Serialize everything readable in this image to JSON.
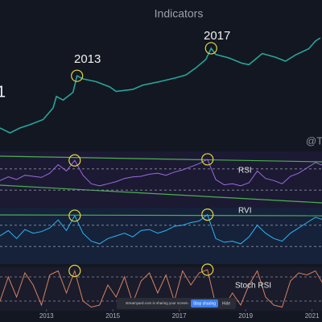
{
  "title": "Indicators",
  "watermark": "@Te",
  "screen_share": {
    "message": "streamyard.com is sharing your screen.",
    "stop_button": "Stop sharing",
    "hide_button": "Hide"
  },
  "chart_data": [
    {
      "type": "line",
      "log_scale": true,
      "color": "#26a69a",
      "annotations": [
        {
          "text": "1"
        },
        {
          "text": "2013"
        },
        {
          "text": "2017"
        }
      ],
      "xlim": [
        2011.6,
        2021.3
      ],
      "ylim": [
        2,
        100000
      ],
      "x": [
        2011.6,
        2011.9,
        2012.2,
        2012.5,
        2012.9,
        2013.2,
        2013.3,
        2013.5,
        2013.8,
        2013.92,
        2014.1,
        2014.5,
        2014.9,
        2015.1,
        2015.6,
        2015.9,
        2016.4,
        2016.9,
        2017.2,
        2017.5,
        2017.8,
        2017.96,
        2018.1,
        2018.5,
        2018.9,
        2019.1,
        2019.5,
        2019.9,
        2020.2,
        2020.5,
        2020.9,
        2021.1,
        2021.25
      ],
      "values": [
        5,
        3,
        5,
        7,
        12,
        40,
        130,
        90,
        200,
        1100,
        800,
        600,
        350,
        220,
        270,
        420,
        600,
        900,
        1200,
        2500,
        6000,
        19000,
        10000,
        7000,
        4000,
        3500,
        11000,
        7500,
        5000,
        9500,
        18000,
        40000,
        55000
      ]
    },
    {
      "type": "line",
      "label": "RSI",
      "color": "#9c6ade",
      "hlines": [
        70,
        30
      ],
      "xlim": [
        2011.6,
        2021.3
      ],
      "ylim": [
        0,
        100
      ],
      "x": [
        2011.6,
        2011.85,
        2012.1,
        2012.35,
        2012.6,
        2012.85,
        2013.1,
        2013.35,
        2013.6,
        2013.85,
        2014.1,
        2014.35,
        2014.6,
        2014.85,
        2015.1,
        2015.35,
        2015.6,
        2015.85,
        2016.1,
        2016.35,
        2016.6,
        2016.85,
        2017.1,
        2017.35,
        2017.6,
        2017.85,
        2018.1,
        2018.35,
        2018.6,
        2018.85,
        2019.1,
        2019.35,
        2019.6,
        2019.85,
        2020.1,
        2020.35,
        2020.6,
        2020.85,
        2021.1,
        2021.35
      ],
      "values": [
        48,
        55,
        50,
        58,
        56,
        54,
        62,
        78,
        66,
        86,
        58,
        42,
        38,
        42,
        46,
        52,
        55,
        56,
        60,
        62,
        58,
        64,
        68,
        74,
        80,
        88,
        50,
        40,
        42,
        38,
        44,
        66,
        52,
        48,
        42,
        56,
        62,
        72,
        82,
        76
      ]
    },
    {
      "type": "line",
      "label": "RVI",
      "color": "#29b6f6",
      "hlines": [
        70,
        30
      ],
      "xlim": [
        2011.6,
        2021.3
      ],
      "ylim": [
        0,
        100
      ],
      "x": [
        2011.6,
        2011.85,
        2012.1,
        2012.35,
        2012.6,
        2012.85,
        2013.1,
        2013.35,
        2013.6,
        2013.85,
        2014.1,
        2014.35,
        2014.6,
        2014.85,
        2015.1,
        2015.35,
        2015.6,
        2015.85,
        2016.1,
        2016.35,
        2016.6,
        2016.85,
        2017.1,
        2017.35,
        2017.6,
        2017.85,
        2018.1,
        2018.35,
        2018.6,
        2018.85,
        2019.1,
        2019.35,
        2019.6,
        2019.85,
        2020.1,
        2020.35,
        2020.6,
        2020.85,
        2021.1,
        2021.35
      ],
      "values": [
        50,
        60,
        45,
        62,
        55,
        58,
        65,
        80,
        60,
        88,
        55,
        40,
        35,
        45,
        50,
        55,
        48,
        60,
        62,
        55,
        60,
        68,
        70,
        75,
        78,
        90,
        45,
        38,
        40,
        35,
        48,
        70,
        55,
        45,
        40,
        55,
        65,
        75,
        85,
        80
      ]
    },
    {
      "type": "line",
      "label": "Stoch RSI",
      "color": "#d9805f",
      "hlines": [
        80,
        20
      ],
      "xlim": [
        2011.6,
        2021.3
      ],
      "ylim": [
        0,
        100
      ],
      "xticks": [
        2013,
        2015,
        2017,
        2019,
        2021
      ],
      "x": [
        2011.6,
        2011.85,
        2012.1,
        2012.35,
        2012.6,
        2012.85,
        2013.1,
        2013.35,
        2013.6,
        2013.85,
        2014.1,
        2014.35,
        2014.6,
        2014.85,
        2015.1,
        2015.35,
        2015.6,
        2015.85,
        2016.1,
        2016.35,
        2016.6,
        2016.85,
        2017.1,
        2017.35,
        2017.6,
        2017.85,
        2018.1,
        2018.35,
        2018.6,
        2018.85,
        2019.1,
        2019.35,
        2019.6,
        2019.85,
        2020.1,
        2020.35,
        2020.6,
        2020.85,
        2021.1,
        2021.35
      ],
      "values": [
        20,
        80,
        30,
        90,
        60,
        10,
        85,
        95,
        40,
        95,
        20,
        5,
        10,
        60,
        30,
        80,
        15,
        70,
        90,
        40,
        85,
        20,
        95,
        60,
        90,
        98,
        10,
        5,
        40,
        10,
        60,
        95,
        30,
        10,
        5,
        70,
        90,
        85,
        95,
        60
      ]
    }
  ]
}
